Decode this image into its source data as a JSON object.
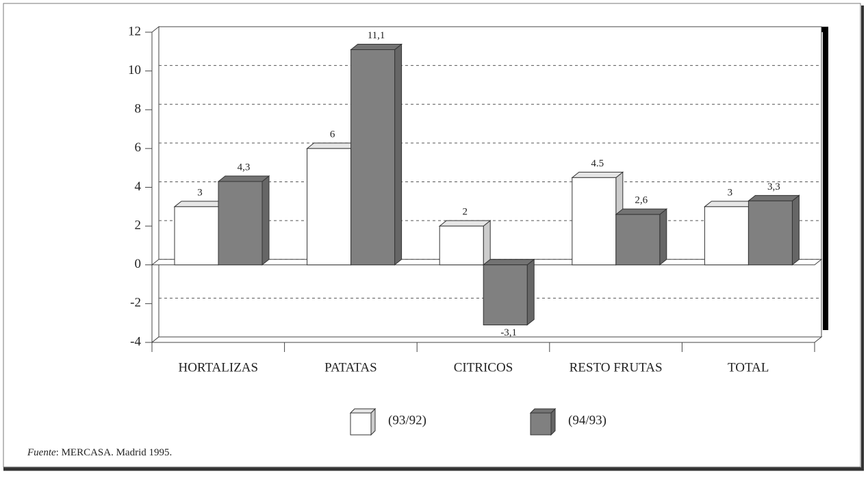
{
  "chart_data": {
    "type": "bar3d",
    "categories": [
      "HORTALIZAS",
      "PATATAS",
      "CITRICOS",
      "RESTO FRUTAS",
      "TOTAL"
    ],
    "series": [
      {
        "name": "(93/92)",
        "color": "#ffffff",
        "values": [
          3,
          6,
          2,
          4.5,
          3
        ]
      },
      {
        "name": "(94/93)",
        "color": "#808080",
        "values": [
          4.3,
          11.1,
          -3.1,
          2.6,
          3.3
        ],
        "value_labels": [
          "4,3",
          "11,1",
          "-3,1",
          "2,6",
          "3,3"
        ]
      }
    ],
    "ylim": [
      -4,
      12
    ],
    "yticks": [
      -4,
      -2,
      0,
      2,
      4,
      6,
      8,
      10,
      12
    ],
    "grid": true,
    "legend": "bottom"
  },
  "source": {
    "label": "Fuente",
    "text": ": MERCASA. Madrid 1995."
  }
}
